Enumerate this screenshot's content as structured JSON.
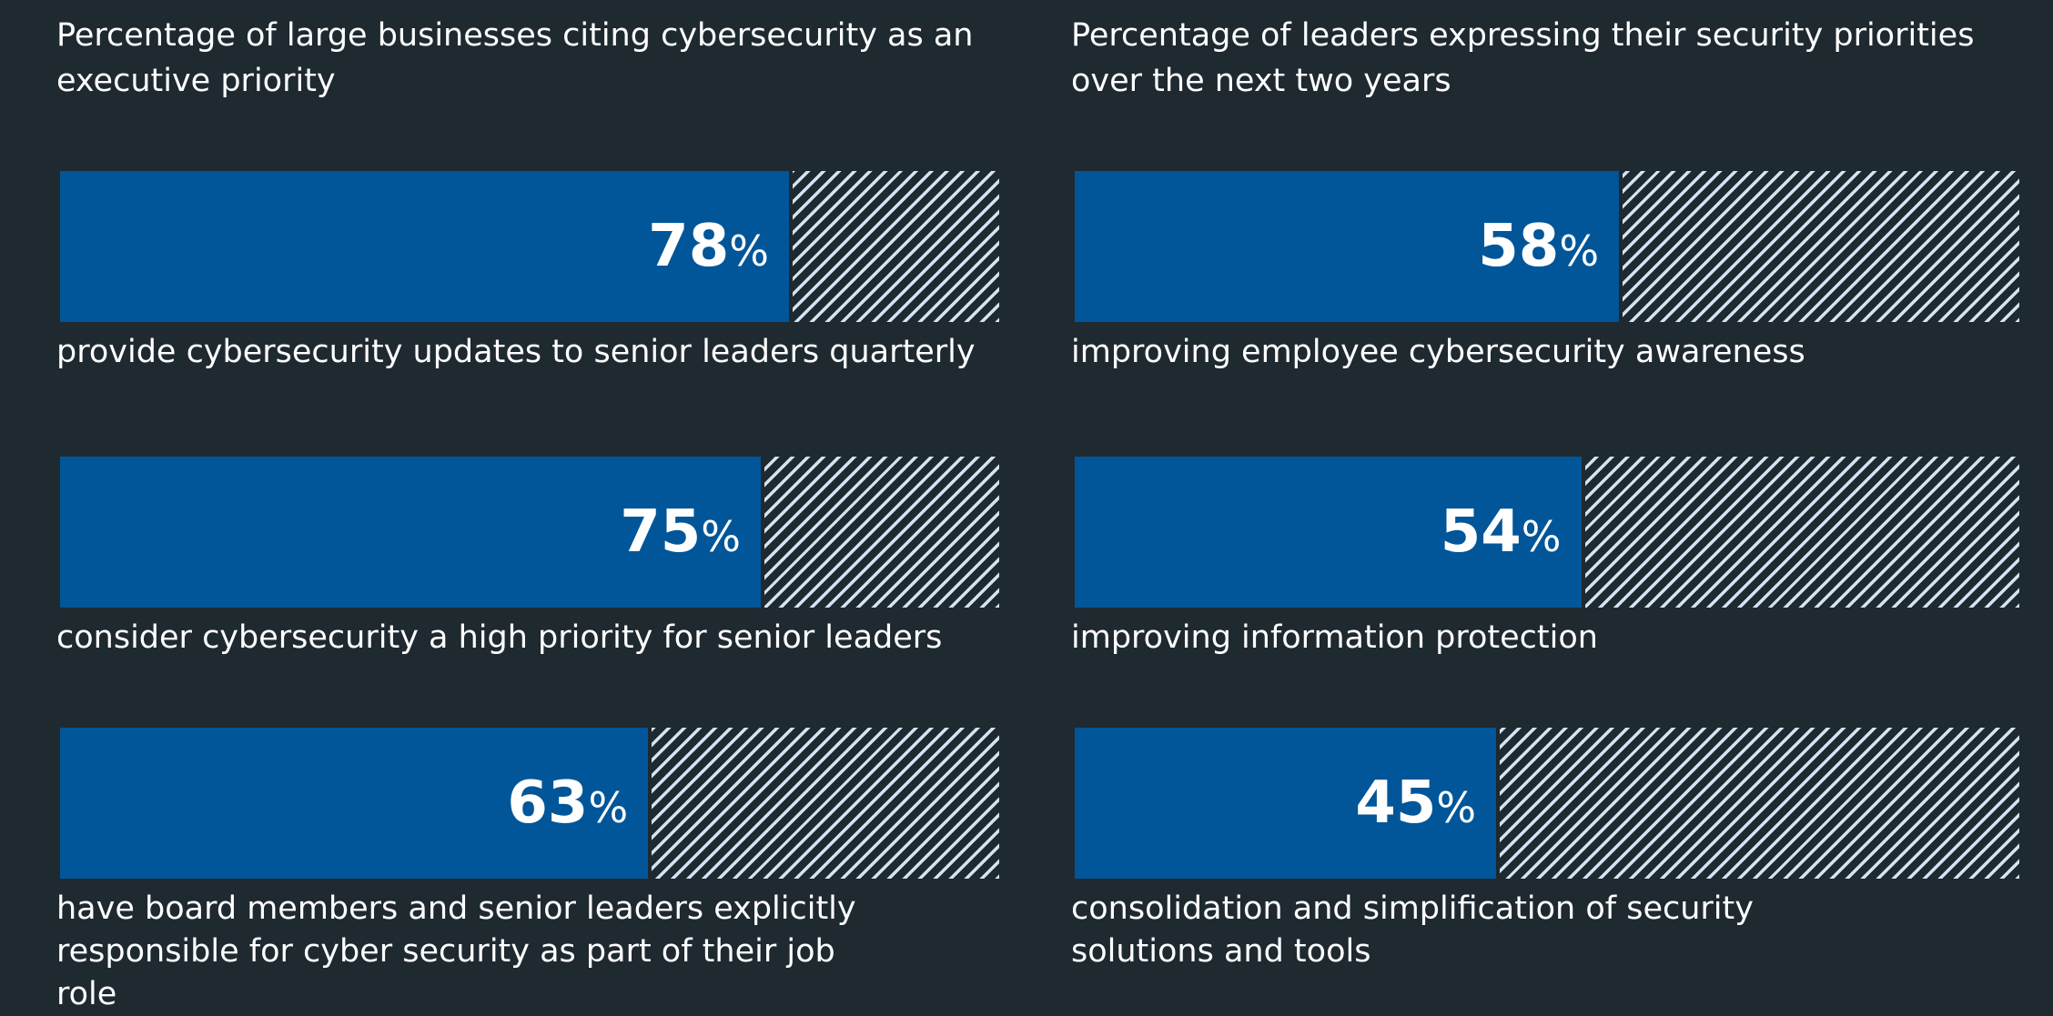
{
  "chart_data": [
    {
      "type": "bar",
      "orientation": "horizontal",
      "title": "Percentage of large businesses citing cybersecurity as an executive priority",
      "unit": "%",
      "xlim": [
        0,
        100
      ],
      "categories": [
        "provide cybersecurity updates to senior leaders quarterly",
        "consider cybersecurity a high priority for senior leaders",
        "have board members and senior leaders explicitly responsible for cyber security as part of their job role"
      ],
      "values": [
        78,
        75,
        63
      ],
      "value_labels": [
        "78",
        "75",
        "63"
      ]
    },
    {
      "type": "bar",
      "orientation": "horizontal",
      "title": "Percentage of leaders expressing their security priorities over the next two years",
      "unit": "%",
      "xlim": [
        0,
        100
      ],
      "categories": [
        "improving employee cybersecurity awareness",
        "improving information protection",
        "consolidation and simplification of security solutions and tools"
      ],
      "values": [
        58,
        54,
        45
      ],
      "value_labels": [
        "58",
        "54",
        "45"
      ]
    }
  ],
  "colors": {
    "background": "#1e2930",
    "bar_fill": "#005699",
    "hatch": "#d2e4f2",
    "text": "#ffffff"
  }
}
